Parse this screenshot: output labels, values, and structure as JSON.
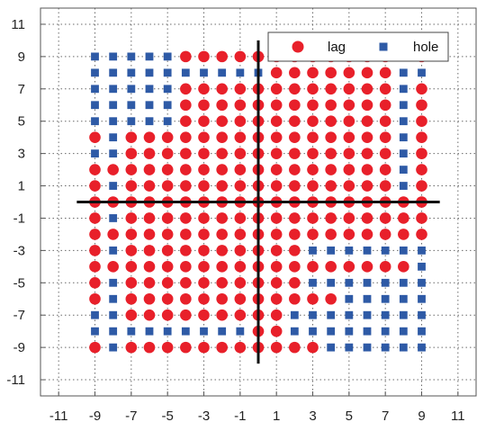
{
  "chart_data": {
    "type": "scatter",
    "xlim": [
      -12,
      12
    ],
    "ylim": [
      -12,
      12
    ],
    "xticks": [
      -11,
      -9,
      -7,
      -5,
      -3,
      -1,
      1,
      3,
      5,
      7,
      9,
      11
    ],
    "yticks": [
      11,
      9,
      7,
      5,
      3,
      1,
      -1,
      -3,
      -5,
      -7,
      -9,
      -11
    ],
    "grid": true,
    "grid_style": "dotted",
    "legend_position": "top-right",
    "crosshair": {
      "x": 0,
      "y": 0,
      "x_extent": [
        -10,
        10
      ],
      "y_extent": [
        -10,
        10
      ]
    },
    "lattice": {
      "x_range": [
        -9,
        9
      ],
      "y_range": [
        -9,
        9
      ],
      "step": 1
    },
    "series": [
      {
        "name": "lag",
        "marker": "circle",
        "color": "#e8202a"
      },
      {
        "name": "hole",
        "marker": "square",
        "color": "#2e5aa6"
      }
    ],
    "rows": [
      {
        "y": 9,
        "pattern": "HHHHHLLLLLLLLLLLLHL"
      },
      {
        "y": 8,
        "pattern": "HHHHHHHHHHLLLLLLLHH"
      },
      {
        "y": 7,
        "pattern": "HHHHHLLLLLLLLLLLLHL"
      },
      {
        "y": 6,
        "pattern": "HHHHHLLLLLLLLLLLLHL"
      },
      {
        "y": 5,
        "pattern": "HHHHHLLLLLLLLLLLLHL"
      },
      {
        "y": 4,
        "pattern": "LHLLLLLLLLLLLLLLLHL"
      },
      {
        "y": 3,
        "pattern": "HHLLLLLLLLLLLLLLLHL"
      },
      {
        "y": 2,
        "pattern": "LLLLLLLLLLLLLLLLLHL"
      },
      {
        "y": 1,
        "pattern": "LHLLLLLLLLLLLLLLLHL"
      },
      {
        "y": 0,
        "pattern": "LLLLLLLLLLLLLLLLLLL"
      },
      {
        "y": -1,
        "pattern": "LHLLLLLLLLLLLLLLLLL"
      },
      {
        "y": -2,
        "pattern": "LLLLLLLLLLLLLLLLLLL"
      },
      {
        "y": -3,
        "pattern": "LHLLLLLLLLLLHHHHHHH"
      },
      {
        "y": -4,
        "pattern": "LLLLLLLLLLLLLLLLLLH"
      },
      {
        "y": -5,
        "pattern": "LHLLLLLLLLLLHHHHHHH"
      },
      {
        "y": -6,
        "pattern": "LHLLLLLLLLLLLLHHHHH"
      },
      {
        "y": -7,
        "pattern": "HHLLLLLLLLLHHHHHHHH"
      },
      {
        "y": -8,
        "pattern": "HHHHHHHHHLLHHHHHHHH"
      },
      {
        "y": -9,
        "pattern": "LHLLLLLLLLLLLHHHHHH"
      }
    ]
  }
}
